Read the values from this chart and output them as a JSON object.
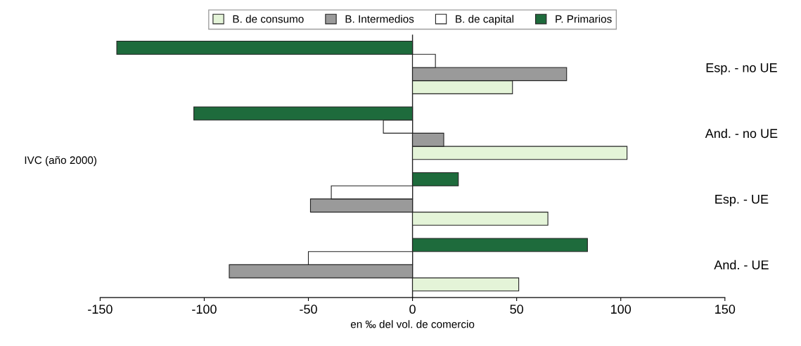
{
  "chart_data": {
    "type": "bar",
    "orientation": "horizontal",
    "ylabel": "IVC (año 2000)",
    "xlabel": "en ‰ del vol. de comercio",
    "categories": [
      "Esp. - no UE",
      "And. - no UE",
      "Esp. - UE",
      "And. - UE"
    ],
    "series": [
      {
        "name": "B. de consumo",
        "color": "#e4f4d8",
        "values": [
          48,
          103,
          65,
          51
        ]
      },
      {
        "name": "B. Intermedios",
        "color": "#9a9a9a",
        "values": [
          74,
          15,
          -49,
          -88
        ]
      },
      {
        "name": "B. de capital",
        "color": "#ffffff",
        "values": [
          11,
          -14,
          -39,
          -50
        ]
      },
      {
        "name": "P. Primarios",
        "color": "#1e6b3c",
        "values": [
          -142,
          -105,
          22,
          84
        ]
      }
    ],
    "xlim": [
      -150,
      150
    ],
    "xticks": [
      -150,
      -100,
      -50,
      0,
      50,
      100,
      150
    ],
    "grid": false,
    "ref_lines": [
      {
        "axis": "x",
        "value": 0,
        "color": "#222222"
      }
    ],
    "legend": "top"
  }
}
